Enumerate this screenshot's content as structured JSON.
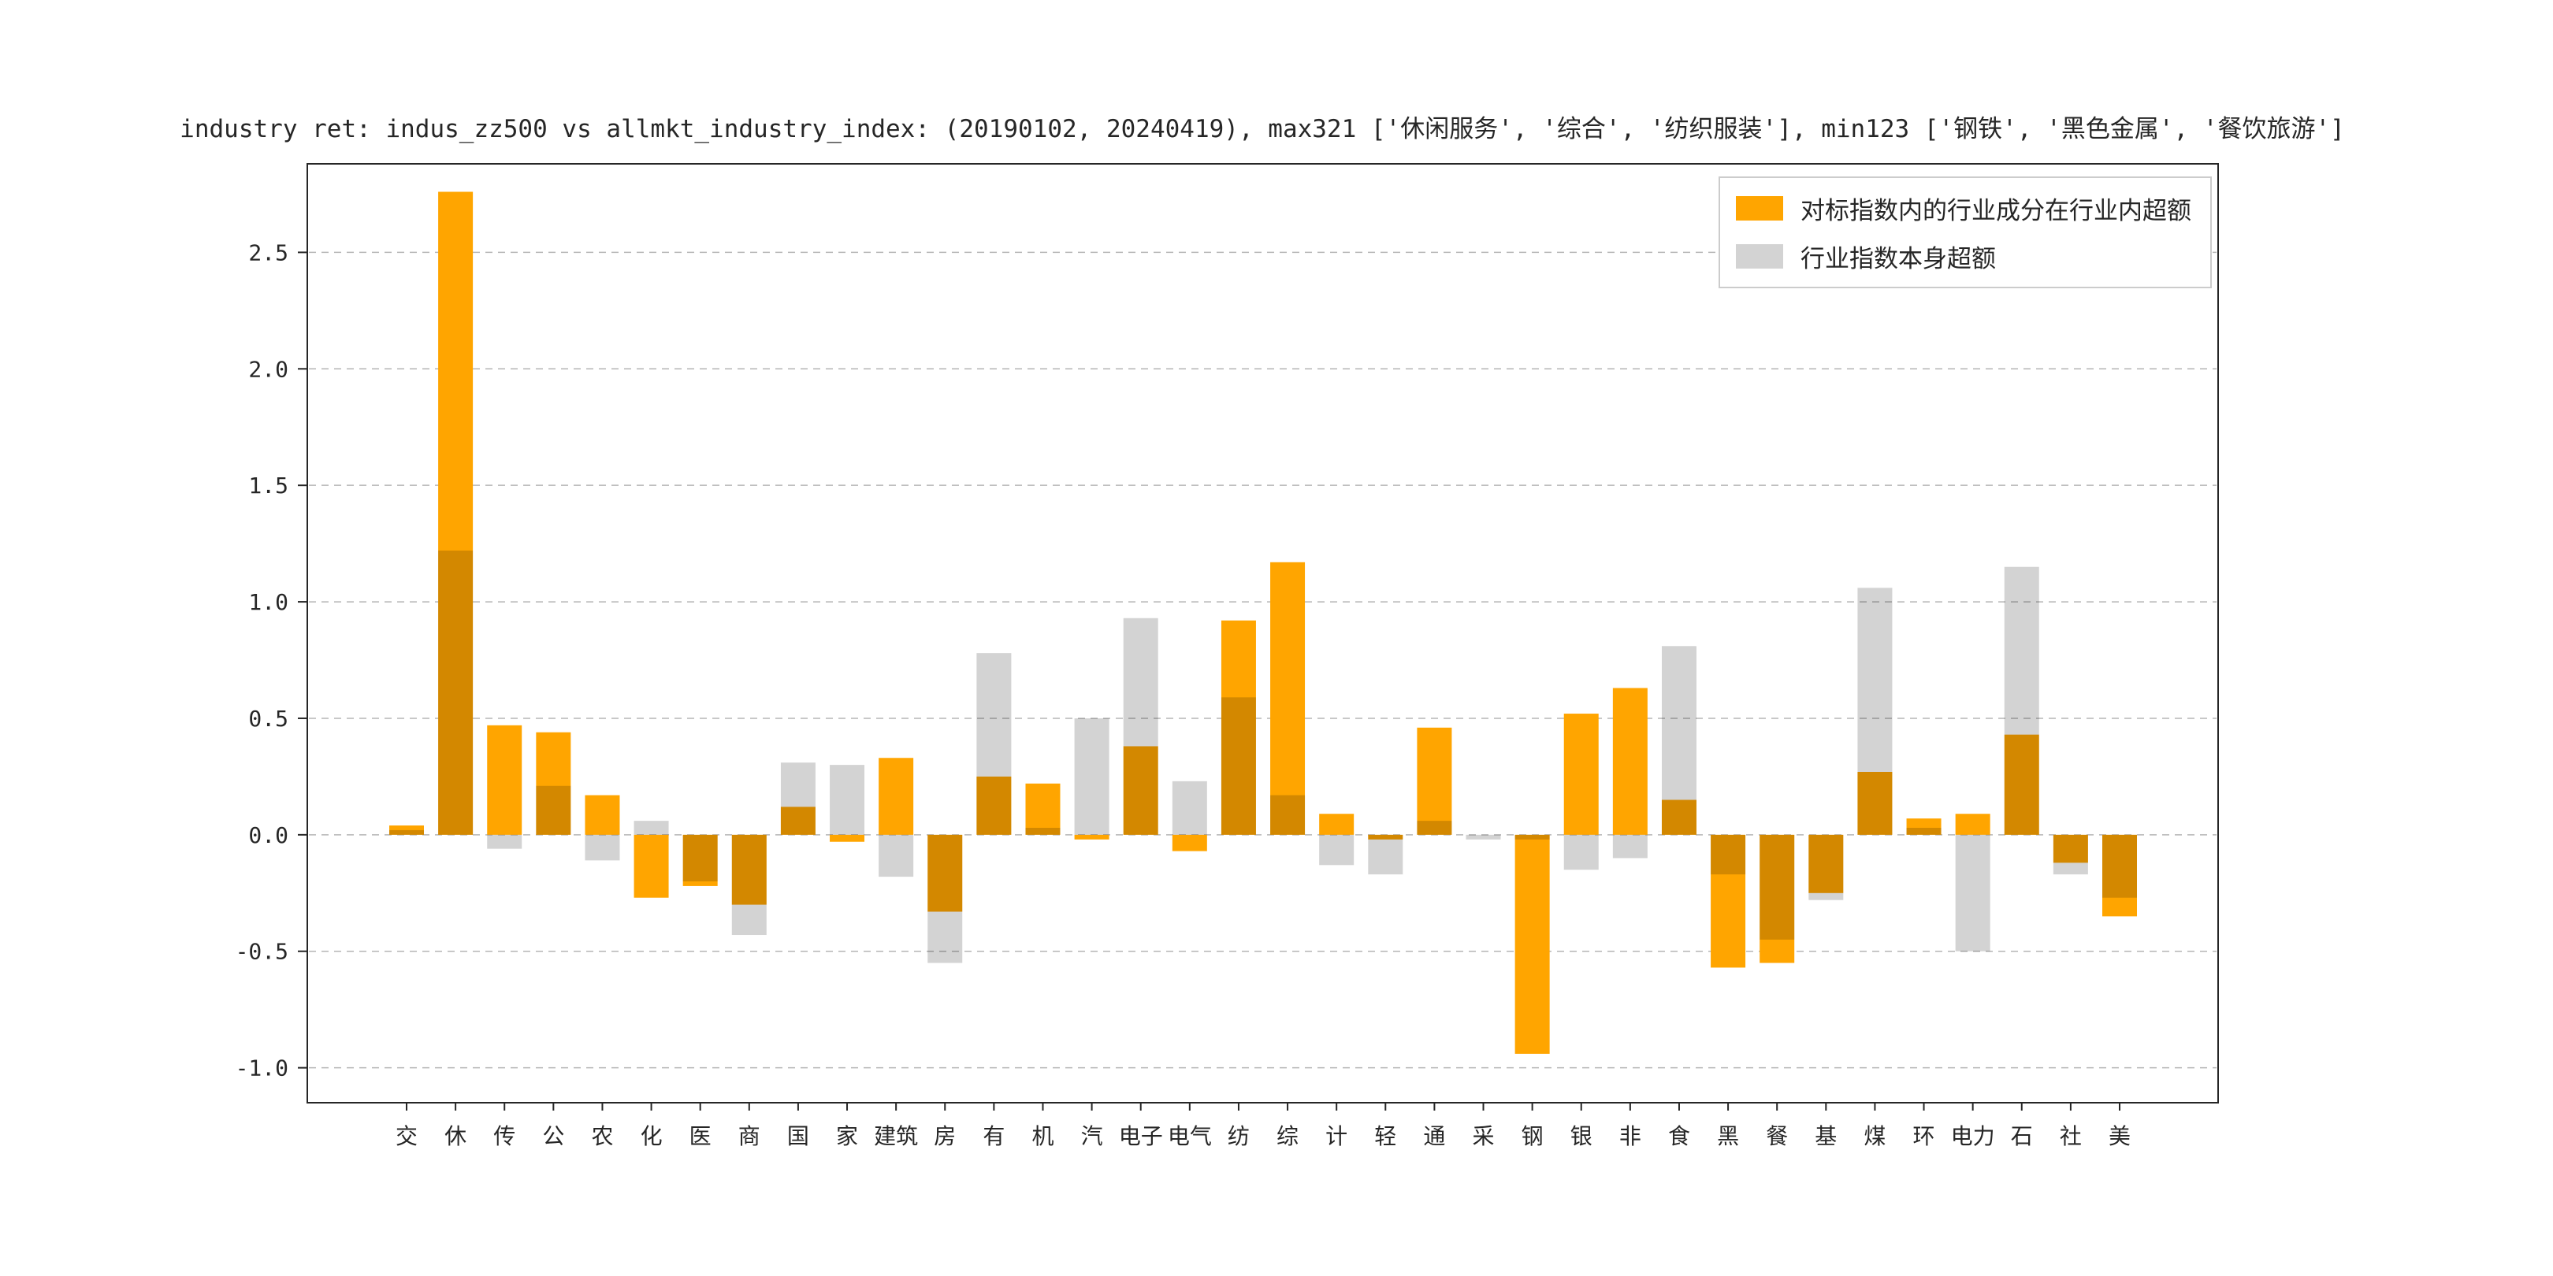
{
  "chart_data": {
    "type": "bar",
    "title": "industry ret: indus_zz500 vs allmkt_industry_index: (20190102, 20240419), max321 ['休闲服务', '综合', '纺织服装'], min123 ['钢铁', '黑色金属', '餐饮旅游']",
    "xlabel": "",
    "ylabel": "",
    "ylim": [
      -1.15,
      2.88
    ],
    "yticks": [
      -1.0,
      -0.5,
      0.0,
      0.5,
      1.0,
      1.5,
      2.0,
      2.5
    ],
    "grid": "dashed-horizontal",
    "legend_position": "upper-right",
    "categories": [
      "交",
      "休",
      "传",
      "公",
      "农",
      "化",
      "医",
      "商",
      "国",
      "家",
      "建筑",
      "房",
      "有",
      "机",
      "汽",
      "电子",
      "电气",
      "纺",
      "综",
      "计",
      "轻",
      "通",
      "采",
      "钢",
      "银",
      "非",
      "食",
      "黑",
      "餐",
      "基",
      "煤",
      "环",
      "电力",
      "石",
      "社",
      "美"
    ],
    "series": [
      {
        "key": "component-excess",
        "name": "对标指数内的行业成分在行业内超额",
        "color": "#FFA500",
        "values": [
          0.04,
          2.76,
          0.47,
          0.44,
          0.17,
          -0.27,
          -0.22,
          -0.3,
          0.12,
          -0.03,
          0.33,
          -0.33,
          0.25,
          0.22,
          -0.02,
          0.38,
          -0.07,
          0.92,
          1.17,
          0.09,
          -0.02,
          0.46,
          0.0,
          -0.94,
          0.52,
          0.63,
          0.15,
          -0.57,
          -0.55,
          -0.25,
          0.27,
          0.07,
          0.09,
          0.43,
          -0.12,
          -0.35
        ]
      },
      {
        "key": "index-excess",
        "name": "行业指数本身超额",
        "color": "#D3D3D3",
        "values": [
          0.02,
          1.22,
          -0.06,
          0.21,
          -0.11,
          0.06,
          -0.2,
          -0.43,
          0.31,
          0.3,
          -0.18,
          -0.55,
          0.78,
          0.03,
          0.5,
          0.93,
          0.23,
          0.59,
          0.17,
          -0.13,
          -0.17,
          0.06,
          -0.02,
          -0.02,
          -0.15,
          -0.1,
          0.81,
          -0.17,
          -0.45,
          -0.28,
          1.06,
          0.03,
          -0.5,
          1.15,
          -0.17,
          -0.27
        ]
      }
    ],
    "colors": {
      "grid": "#b5b5b5",
      "spine": "#262626",
      "tick_text": "#262626"
    }
  }
}
